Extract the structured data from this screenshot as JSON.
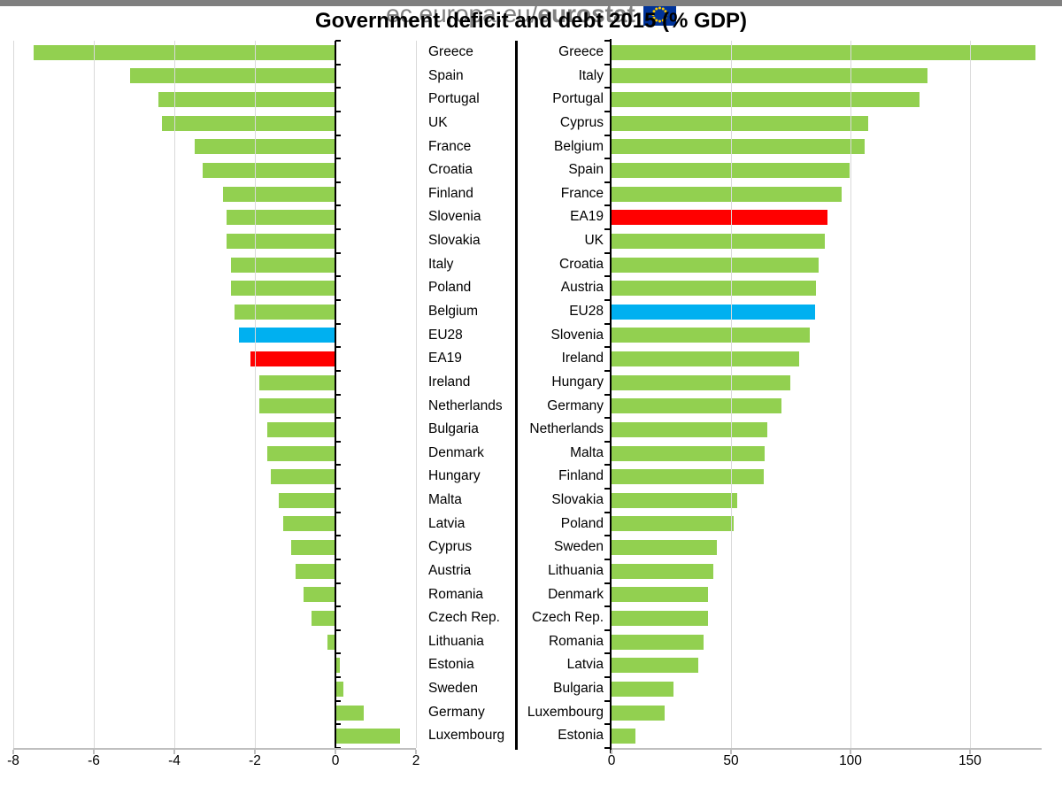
{
  "page": {
    "title": "Government deficit and debt 2015 (% GDP)",
    "footer_domain": "ec.europa.eu/",
    "footer_brand": "eurostat"
  },
  "colors": {
    "bar_default": "#92D050",
    "bar_eu28": "#00B0F0",
    "bar_ea19": "#FF0000",
    "gridline": "#D9D9D9",
    "axis_line": "#BFBFBF",
    "axis_black": "#000000",
    "label_text": "#000000",
    "footer_text": "#808080",
    "top_strip": "#7F7F7F",
    "flag_blue": "#003399",
    "flag_stars": "#FFCC00"
  },
  "chart_data": [
    {
      "id": "deficit",
      "type": "bar",
      "orientation": "horizontal",
      "xlim": [
        -8,
        2
      ],
      "xticks": [
        -8,
        -6,
        -4,
        -2,
        0,
        2
      ],
      "grid": true,
      "zero_axis": true,
      "label_side": "right",
      "categories": [
        "Greece",
        "Spain",
        "Portugal",
        "UK",
        "France",
        "Croatia",
        "Finland",
        "Slovenia",
        "Slovakia",
        "Italy",
        "Poland",
        "Belgium",
        "EU28",
        "EA19",
        "Ireland",
        "Netherlands",
        "Bulgaria",
        "Denmark",
        "Hungary",
        "Malta",
        "Latvia",
        "Cyprus",
        "Austria",
        "Romania",
        "Czech Rep.",
        "Lithuania",
        "Estonia",
        "Sweden",
        "Germany",
        "Luxembourg"
      ],
      "values": [
        -7.5,
        -5.1,
        -4.4,
        -4.3,
        -3.5,
        -3.3,
        -2.8,
        -2.7,
        -2.7,
        -2.6,
        -2.6,
        -2.5,
        -2.4,
        -2.1,
        -1.9,
        -1.9,
        -1.7,
        -1.7,
        -1.6,
        -1.4,
        -1.3,
        -1.1,
        -1.0,
        -0.8,
        -0.6,
        -0.2,
        0.1,
        0.2,
        0.7,
        1.6
      ],
      "highlights": {
        "EU28": "bar_eu28",
        "EA19": "bar_ea19"
      }
    },
    {
      "id": "debt",
      "type": "bar",
      "orientation": "horizontal",
      "xlim": [
        0,
        180
      ],
      "xticks": [
        0,
        50,
        100,
        150
      ],
      "grid": true,
      "zero_axis": true,
      "label_side": "left",
      "categories": [
        "Greece",
        "Italy",
        "Portugal",
        "Cyprus",
        "Belgium",
        "Spain",
        "France",
        "EA19",
        "UK",
        "Croatia",
        "Austria",
        "EU28",
        "Slovenia",
        "Ireland",
        "Hungary",
        "Germany",
        "Netherlands",
        "Malta",
        "Finland",
        "Slovakia",
        "Poland",
        "Sweden",
        "Lithuania",
        "Denmark",
        "Czech Rep.",
        "Romania",
        "Latvia",
        "Bulgaria",
        "Luxembourg",
        "Estonia"
      ],
      "values": [
        177.4,
        132.3,
        129.0,
        107.5,
        105.8,
        99.8,
        96.2,
        90.4,
        89.1,
        86.7,
        85.5,
        85.1,
        83.1,
        78.6,
        74.7,
        71.2,
        65.1,
        64.0,
        63.6,
        52.5,
        51.1,
        43.9,
        42.7,
        40.4,
        40.3,
        38.4,
        36.3,
        26.0,
        22.1,
        10.1
      ],
      "highlights": {
        "EU28": "bar_eu28",
        "EA19": "bar_ea19"
      }
    }
  ]
}
